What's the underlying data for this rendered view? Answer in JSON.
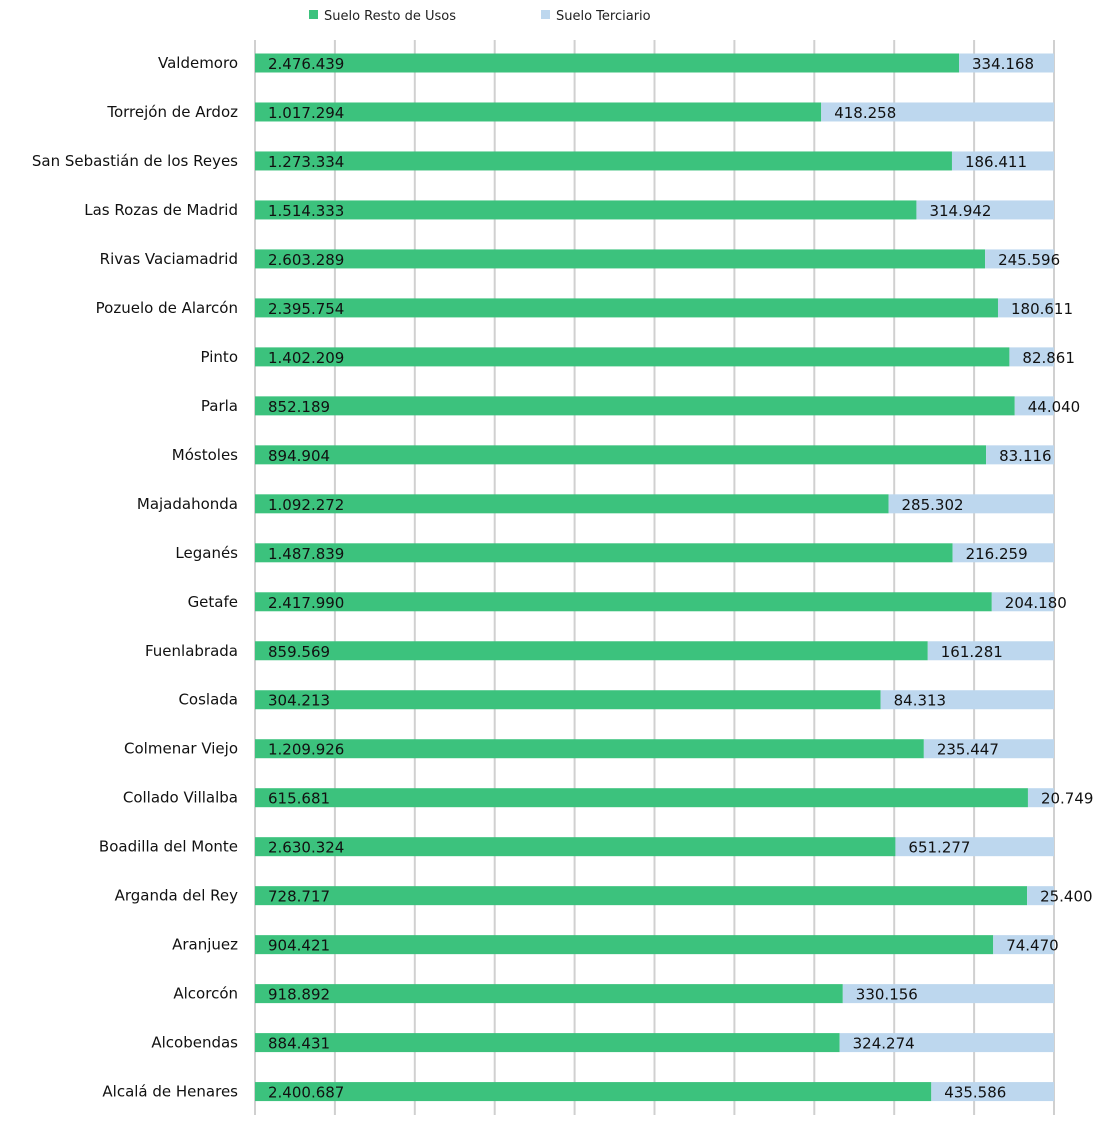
{
  "chart_data": {
    "type": "bar",
    "orientation": "horizontal",
    "stacking": "percent",
    "title": "",
    "xlabel": "",
    "ylabel": "",
    "grid": true,
    "legend_position": "top",
    "categories": [
      "Valdemoro",
      "Torrejón de Ardoz",
      "San Sebastián de los Reyes",
      "Las Rozas de Madrid",
      "Rivas Vaciamadrid",
      "Pozuelo de Alarcón",
      "Pinto",
      "Parla",
      "Móstoles",
      "Majadahonda",
      "Leganés",
      "Getafe",
      "Fuenlabrada",
      "Coslada",
      "Colmenar Viejo",
      "Collado Villalba",
      "Boadilla del Monte",
      "Arganda del Rey",
      "Aranjuez",
      "Alcorcón",
      "Alcobendas",
      "Alcalá de Henares"
    ],
    "series": [
      {
        "name": "Suelo Resto de Usos",
        "color": "#3cc27d",
        "values": [
          2476439,
          1017294,
          1273334,
          1514333,
          2603289,
          2395754,
          1402209,
          852189,
          894904,
          1092272,
          1487839,
          2417990,
          859569,
          304213,
          1209926,
          615681,
          2630324,
          728717,
          904421,
          918892,
          884431,
          2400687
        ],
        "labels": [
          "2.476.439",
          "1.017.294",
          "1.273.334",
          "1.514.333",
          "2.603.289",
          "2.395.754",
          "1.402.209",
          "852.189",
          "894.904",
          "1.092.272",
          "1.487.839",
          "2.417.990",
          "859.569",
          "304.213",
          "1.209.926",
          "615.681",
          "2.630.324",
          "728.717",
          "904.421",
          "918.892",
          "884.431",
          "2.400.687"
        ]
      },
      {
        "name": "Suelo Terciario",
        "color": "#bdd7ee",
        "values": [
          334168,
          418258,
          186411,
          314942,
          245596,
          180611,
          82861,
          44040,
          83116,
          285302,
          216259,
          204180,
          161281,
          84313,
          235447,
          20749,
          651277,
          25400,
          74470,
          330156,
          324274,
          435586
        ],
        "labels": [
          "334.168",
          "418.258",
          "186.411",
          "314.942",
          "245.596",
          "180.611",
          "82.861",
          "44.040",
          "83.116",
          "285.302",
          "216.259",
          "204.180",
          "161.281",
          "84.313",
          "235.447",
          "20.749",
          "651.277",
          "25.400",
          "74.470",
          "330.156",
          "324.274",
          "435.586"
        ]
      }
    ]
  }
}
